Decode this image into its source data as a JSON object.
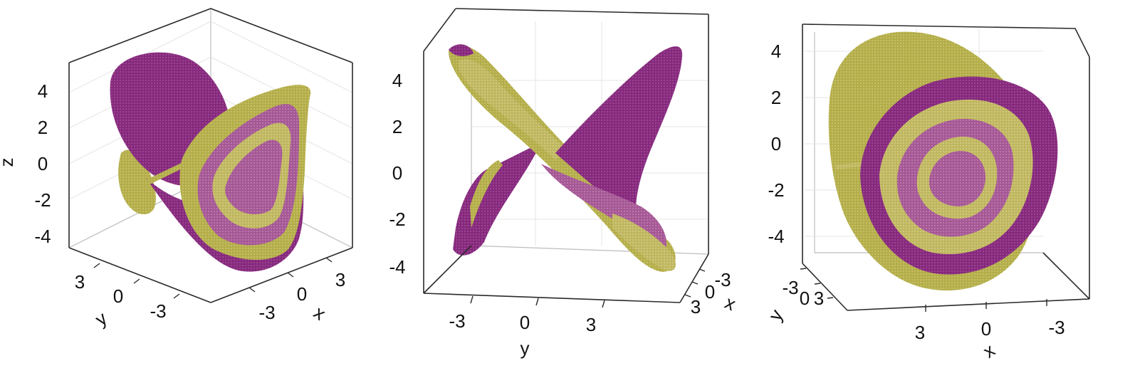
{
  "colors": {
    "purple": "#8a2e82",
    "olive": "#b8b24e",
    "purple_light": "#a95a9c",
    "olive_light": "#c9c06a",
    "axis": "#2a2a2a"
  },
  "chart_data": [
    {
      "type": "3d-surface",
      "view": "perspective",
      "labels": {
        "z": "z",
        "y": "y",
        "x": "x"
      },
      "z_ticks": [
        "4",
        "2",
        "0",
        "-2",
        "-4"
      ],
      "y_ticks": [
        "3",
        "0",
        "-3"
      ],
      "x_ticks": [
        "-3",
        "0",
        "3"
      ],
      "zlim": [
        -5,
        5
      ],
      "ylim": [
        -5,
        5
      ],
      "xlim": [
        -5,
        5
      ],
      "grid": true,
      "series_colors": [
        "purple",
        "olive"
      ]
    },
    {
      "type": "3d-surface",
      "view": "front (y-z)",
      "labels": {
        "y": "y",
        "x": "x"
      },
      "z_ticks": [
        "4",
        "2",
        "0",
        "-2",
        "-4"
      ],
      "y_ticks": [
        "-3",
        "0",
        "3"
      ],
      "x_ticks": [
        "-3",
        "0",
        "3"
      ],
      "zlim": [
        -5,
        5
      ],
      "ylim": [
        -5,
        5
      ],
      "xlim": [
        -5,
        5
      ],
      "grid": true,
      "series_colors": [
        "purple",
        "olive"
      ]
    },
    {
      "type": "3d-surface",
      "view": "front (x-z)",
      "labels": {
        "y": "y",
        "x": "x"
      },
      "z_ticks": [
        "4",
        "2",
        "0",
        "-2",
        "-4"
      ],
      "y_ticks": [
        "-3",
        "0",
        "3"
      ],
      "x_ticks": [
        "3",
        "0",
        "-3"
      ],
      "zlim": [
        -5,
        5
      ],
      "ylim": [
        -5,
        5
      ],
      "xlim": [
        -5,
        5
      ],
      "grid": true,
      "series_colors": [
        "purple",
        "olive"
      ]
    }
  ]
}
